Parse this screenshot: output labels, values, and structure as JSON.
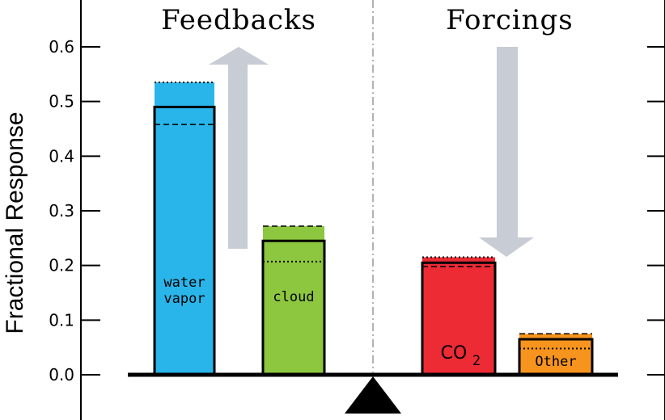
{
  "chart_data": {
    "type": "bar",
    "ylabel": "Fractional Response",
    "ylim": [
      0.0,
      0.6
    ],
    "yticks": [
      "0.0",
      "0.1",
      "0.2",
      "0.3",
      "0.4",
      "0.5",
      "0.6"
    ],
    "groups": [
      {
        "title": "Feedbacks",
        "arrow": "up"
      },
      {
        "title": "Forcings",
        "arrow": "down"
      }
    ],
    "categories": [
      "water vapor",
      "cloud",
      "CO2",
      "Other"
    ],
    "bars": [
      {
        "label_lines": [
          "water",
          "vapor"
        ],
        "value": 0.49,
        "dotted": 0.535,
        "dashed": 0.458,
        "color": "#29b5ea",
        "top_color": "#29b5ea",
        "group": 0
      },
      {
        "label_lines": [
          "cloud"
        ],
        "value": 0.245,
        "dotted": 0.207,
        "dashed": 0.272,
        "color": "#8dc63f",
        "top_color": "#8dc63f",
        "group": 0
      },
      {
        "label_lines": [
          "CO"
        ],
        "subscript": "2",
        "value": 0.205,
        "dotted": 0.215,
        "dashed": 0.198,
        "color": "#ec2b34",
        "top_color": "#ec2b34",
        "group": 1
      },
      {
        "label_lines": [
          "Other"
        ],
        "value": 0.065,
        "dotted": 0.048,
        "dashed": 0.075,
        "color": "#f7941d",
        "top_color": "#f7941d",
        "group": 1
      }
    ],
    "colors": {
      "water_vapor": "#29b5ea",
      "cloud": "#8dc63f",
      "co2": "#ec2b34",
      "other": "#f7941d",
      "arrow": "#c8ccd4"
    }
  }
}
